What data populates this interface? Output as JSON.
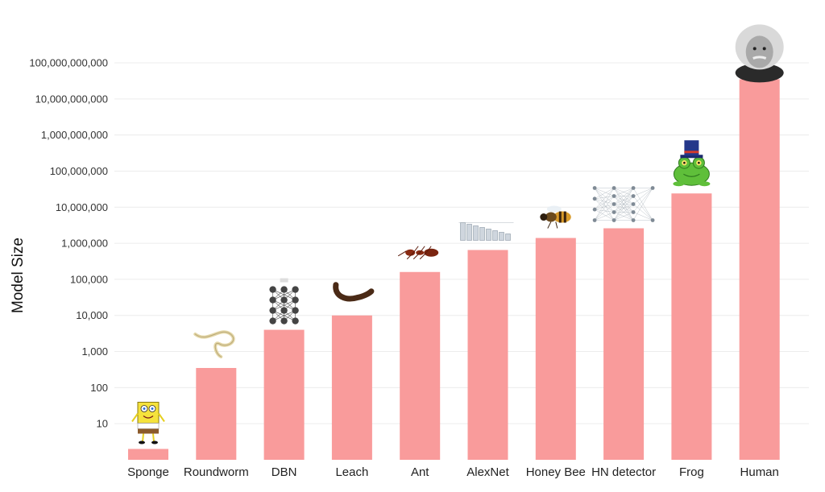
{
  "chart_data": {
    "type": "bar",
    "title": "",
    "xlabel": "",
    "ylabel": "Model Size",
    "yscale": "log10",
    "ylim": [
      1,
      100000000000
    ],
    "yticks": [
      10,
      100,
      1000,
      10000,
      100000,
      1000000,
      10000000,
      100000000,
      1000000000,
      10000000000,
      100000000000
    ],
    "ytick_labels": [
      "10",
      "100",
      "1,000",
      "10,000",
      "100,000",
      "1,000,000",
      "10,000,000",
      "100,000,000",
      "1,000,000,000",
      "10,000,000,000",
      "100,000,000,000"
    ],
    "grid": true,
    "bar_color": "#f99b9b",
    "categories": [
      "Sponge",
      "Roundworm",
      "DBN",
      "Leach",
      "Ant",
      "AlexNet",
      "Honey Bee",
      "HN detector",
      "Frog",
      "Human"
    ],
    "values": [
      2,
      350,
      4000,
      10000,
      160000,
      650000,
      1400000,
      2600000,
      24000000,
      35000000000
    ],
    "pictures": [
      "sponge-cartoon",
      "roundworm",
      "dbn-network",
      "leech",
      "ant",
      "alexnet-diagram",
      "honey-bee",
      "neural-network-diagram",
      "frog-with-top-hat",
      "einstein-portrait"
    ]
  }
}
